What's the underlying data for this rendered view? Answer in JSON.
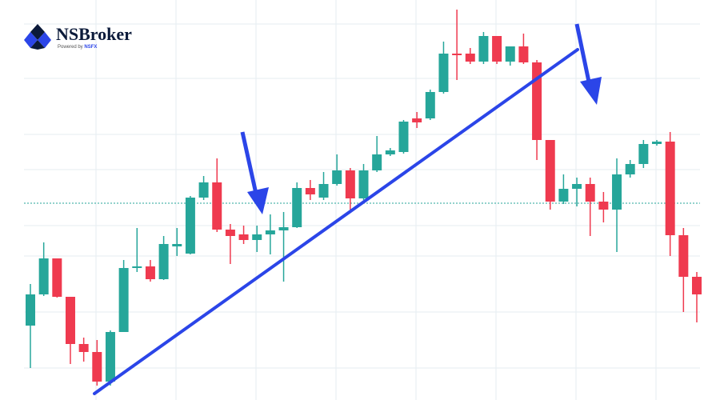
{
  "brand": {
    "name": "NSBroker",
    "tagline_prefix": "Powered by",
    "tagline_brand": "NSFX"
  },
  "chart_data": {
    "type": "candlestick",
    "ylim": [
      0,
      500
    ],
    "up_color": "#26a69a",
    "down_color": "#ef3a4f",
    "open": [
      93,
      132,
      177,
      129,
      70,
      60,
      23,
      85,
      165,
      167,
      151,
      192,
      183,
      253,
      272,
      213,
      207,
      200,
      207,
      212,
      216,
      265,
      253,
      270,
      287,
      252,
      287,
      307,
      310,
      352,
      352,
      385,
      433,
      433,
      423,
      455,
      423,
      442,
      422,
      325,
      248,
      264,
      270,
      248,
      238,
      282,
      295,
      320,
      323,
      206,
      154
    ],
    "close": [
      132,
      177,
      129,
      70,
      60,
      23,
      85,
      165,
      167,
      151,
      195,
      195,
      253,
      272,
      213,
      205,
      200,
      207,
      212,
      216,
      265,
      257,
      270,
      287,
      252,
      287,
      307,
      312,
      348,
      347,
      385,
      433,
      432,
      423,
      455,
      423,
      442,
      422,
      325,
      248,
      264,
      270,
      248,
      238,
      282,
      295,
      320,
      323,
      206,
      154,
      132
    ],
    "high": [
      145,
      197,
      177,
      129,
      78,
      75,
      87,
      175,
      215,
      175,
      205,
      215,
      255,
      280,
      302,
      220,
      218,
      218,
      232,
      235,
      272,
      275,
      285,
      307,
      290,
      295,
      330,
      315,
      350,
      360,
      388,
      448,
      488,
      440,
      460,
      455,
      442,
      458,
      425,
      325,
      282,
      278,
      278,
      260,
      302,
      300,
      325,
      325,
      335,
      215,
      160
    ],
    "low": [
      40,
      130,
      128,
      45,
      48,
      18,
      18,
      85,
      160,
      148,
      150,
      180,
      182,
      250,
      210,
      170,
      195,
      185,
      182,
      148,
      215,
      250,
      250,
      268,
      238,
      250,
      285,
      305,
      308,
      340,
      350,
      383,
      400,
      420,
      420,
      420,
      418,
      420,
      300,
      238,
      245,
      242,
      205,
      222,
      185,
      278,
      290,
      318,
      180,
      110,
      97
    ]
  }
}
